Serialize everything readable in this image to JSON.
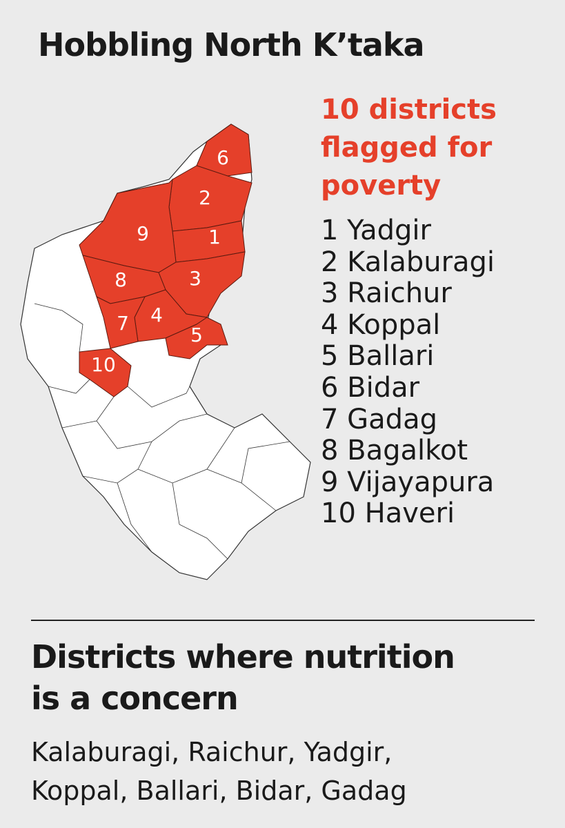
{
  "header": {
    "title": "Hobbling North K’taka"
  },
  "poverty": {
    "heading_lines": [
      "10 districts",
      "flagged for",
      "poverty"
    ],
    "items": [
      {
        "number": "1",
        "name": "Yadgir"
      },
      {
        "number": "2",
        "name": "Kalaburagi"
      },
      {
        "number": "3",
        "name": "Raichur"
      },
      {
        "number": "4",
        "name": "Koppal"
      },
      {
        "number": "5",
        "name": "Ballari"
      },
      {
        "number": "6",
        "name": "Bidar"
      },
      {
        "number": "7",
        "name": "Gadag"
      },
      {
        "number": "8",
        "name": "Bagalkot"
      },
      {
        "number": "9",
        "name": "Vijayapura"
      },
      {
        "number": "10",
        "name": "Haveri"
      }
    ]
  },
  "nutrition": {
    "heading_lines": [
      "Districts where nutrition",
      "is a concern"
    ],
    "text_lines": [
      "Kalaburagi, Raichur, Yadgir,",
      "Koppal, Ballari, Bidar, Gadag"
    ]
  }
}
